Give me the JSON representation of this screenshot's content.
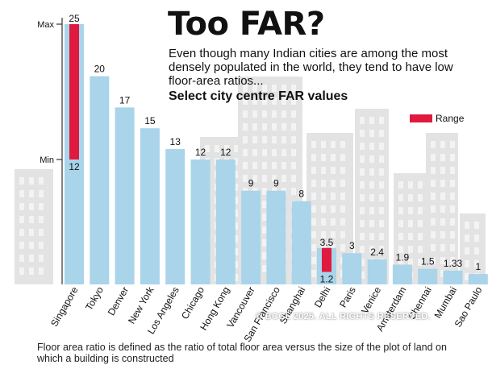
{
  "header": {
    "title": "Too FAR?",
    "subtitle": "Even though many Indian cities are among the most densely populated in the world, they tend to have low floor-area ratios...",
    "section_title": "Select city centre FAR values"
  },
  "legend": {
    "label": "Range",
    "color": "#e0193f"
  },
  "footnote": "Floor area ratio is defined as the ratio of total floor area versus the size of the plot of land on which a building is constructed",
  "copyright": "© BCCL 2025. ALL RIGHTS RESERVED.",
  "colors": {
    "bar": "#a9d4ea",
    "range": "#e0193f",
    "building": "#e3e3e3",
    "axis": "#333333"
  },
  "chart_data": {
    "type": "bar",
    "title": "Select city centre FAR values",
    "xlabel": "",
    "ylabel": "",
    "ylim": [
      0,
      25
    ],
    "axis_labels": [
      {
        "text": "Max",
        "value": 25
      },
      {
        "text": "Min",
        "value": 12
      }
    ],
    "categories": [
      "Singapore",
      "Tokyo",
      "Denver",
      "New York",
      "Los Angeles",
      "Chicago",
      "Hong Kong",
      "Vancouver",
      "San Francisco",
      "Shanghai",
      "Delhi",
      "Paris",
      "Venice",
      "Amsterdam",
      "Chennai",
      "Mumbai",
      "Sao Paulo"
    ],
    "values": [
      25,
      20,
      17,
      15,
      13,
      12,
      12,
      9,
      9,
      8,
      3.5,
      3,
      2.4,
      1.9,
      1.5,
      1.33,
      1
    ],
    "value_labels": [
      "25",
      "20",
      "17",
      "15",
      "13",
      "12",
      "12",
      "9",
      "9",
      "8",
      "3.5",
      "3",
      "2.4",
      "1.9",
      "1.5",
      "1.33",
      "1"
    ],
    "ranges": [
      {
        "category": "Singapore",
        "min": 12,
        "max": 25,
        "min_label": "12",
        "max_label": "25"
      },
      {
        "category": "Delhi",
        "min": 1.2,
        "max": 3.5,
        "min_label": "1.2",
        "max_label": "3.5"
      }
    ]
  }
}
